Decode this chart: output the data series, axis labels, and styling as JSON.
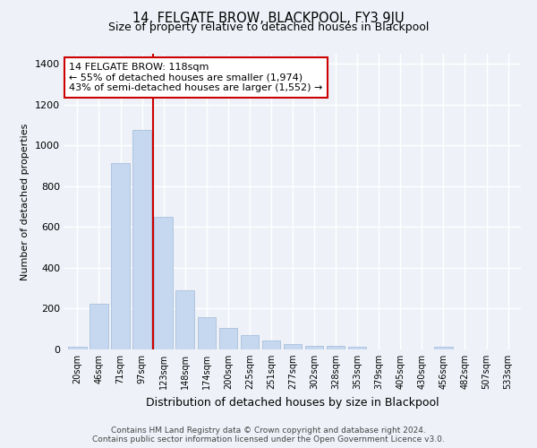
{
  "title": "14, FELGATE BROW, BLACKPOOL, FY3 9JU",
  "subtitle": "Size of property relative to detached houses in Blackpool",
  "xlabel": "Distribution of detached houses by size in Blackpool",
  "ylabel": "Number of detached properties",
  "bar_labels": [
    "20sqm",
    "46sqm",
    "71sqm",
    "97sqm",
    "123sqm",
    "148sqm",
    "174sqm",
    "200sqm",
    "225sqm",
    "251sqm",
    "277sqm",
    "302sqm",
    "328sqm",
    "353sqm",
    "379sqm",
    "405sqm",
    "430sqm",
    "456sqm",
    "482sqm",
    "507sqm",
    "533sqm"
  ],
  "bar_heights": [
    15,
    225,
    915,
    1075,
    650,
    290,
    158,
    105,
    70,
    45,
    28,
    18,
    18,
    12,
    0,
    0,
    0,
    15,
    0,
    0,
    0
  ],
  "bar_color": "#c5d8f0",
  "bar_edge_color": "#a0b8d8",
  "vline_color": "#cc0000",
  "annotation_title": "14 FELGATE BROW: 118sqm",
  "annotation_line1": "← 55% of detached houses are smaller (1,974)",
  "annotation_line2": "43% of semi-detached houses are larger (1,552) →",
  "annotation_box_color": "#ffffff",
  "annotation_box_edge": "#cc0000",
  "ylim": [
    0,
    1450
  ],
  "yticks": [
    0,
    200,
    400,
    600,
    800,
    1000,
    1200,
    1400
  ],
  "bg_color": "#eef2f8",
  "grid_color": "#ffffff",
  "footer_line1": "Contains HM Land Registry data © Crown copyright and database right 2024.",
  "footer_line2": "Contains public sector information licensed under the Open Government Licence v3.0."
}
